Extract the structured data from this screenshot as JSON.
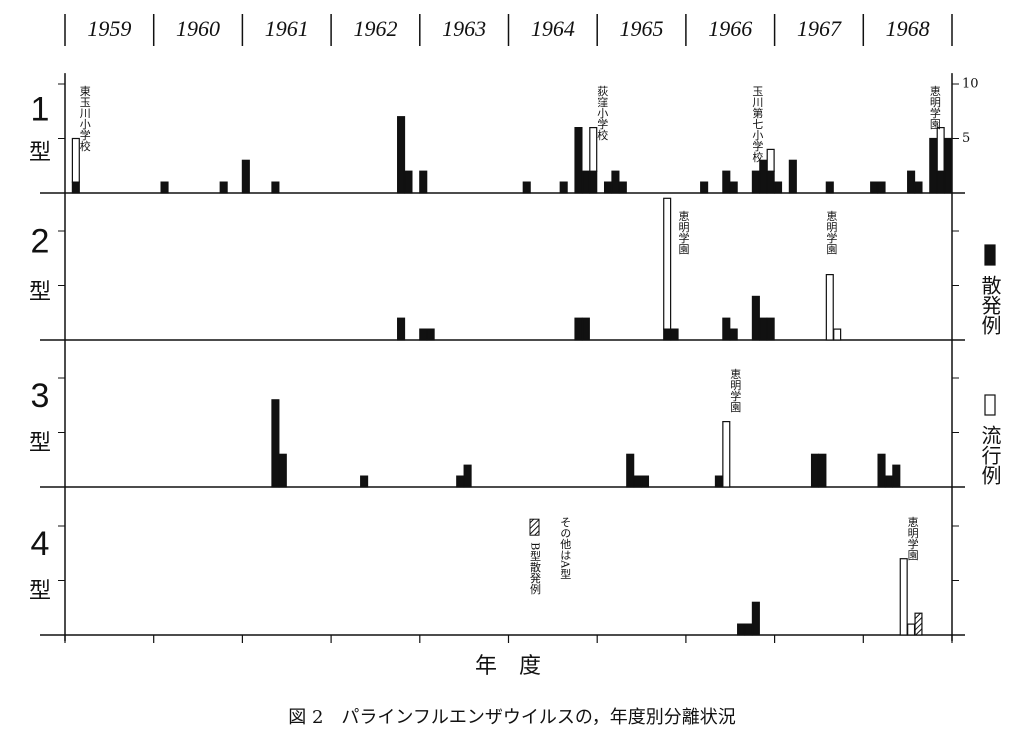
{
  "years": [
    "1959",
    "1960",
    "1961",
    "1962",
    "1963",
    "1964",
    "1965",
    "1966",
    "1967",
    "1968"
  ],
  "xlim": [
    0,
    120
  ],
  "xticks": [
    0,
    12,
    24,
    36,
    48,
    60,
    72,
    84,
    96,
    108,
    120
  ],
  "x_label": "年　度",
  "caption": "図 2　パラインフルエンザウイルスの，年度別分離状況",
  "legend": [
    {
      "name": "散発例",
      "color": "#111111"
    },
    {
      "name": "流行例",
      "color": "#ffffff"
    }
  ],
  "chart_data": [
    {
      "type": "bar",
      "label": "1",
      "label_suffix": "型",
      "ylim": [
        0,
        11
      ],
      "yticks": [
        5,
        10
      ],
      "ytick_labels": true,
      "series": [
        {
          "color": "#111111",
          "x": [
            1,
            13,
            21,
            24,
            28,
            45,
            46,
            48,
            62,
            67,
            69,
            70,
            71,
            73,
            74,
            75,
            86,
            89,
            90,
            93,
            94,
            95,
            96,
            98,
            103,
            109,
            110,
            114,
            115,
            117,
            118,
            119
          ],
          "values": [
            1,
            1,
            1,
            3,
            1,
            7,
            2,
            2,
            1,
            1,
            6,
            2,
            2,
            1,
            2,
            1,
            1,
            2,
            1,
            2,
            3,
            2,
            1,
            3,
            1,
            1,
            1,
            2,
            1,
            5,
            2,
            5
          ]
        },
        {
          "color": "#ffffff",
          "x": [
            1,
            71,
            95,
            118
          ],
          "values": [
            4,
            4,
            2,
            4
          ]
        }
      ],
      "annotations": [
        {
          "text": "東玉川小学校",
          "x": 2
        },
        {
          "text": "荻窪小学校",
          "x": 72
        },
        {
          "text": "玉川第七小学校",
          "x": 93
        },
        {
          "text": "恵明学園",
          "x": 117
        }
      ]
    },
    {
      "type": "bar",
      "label": "2",
      "label_suffix": "型",
      "ylim": [
        0,
        13
      ],
      "yticks": [
        5,
        10
      ],
      "ytick_labels": false,
      "series": [
        {
          "color": "#111111",
          "x": [
            45,
            48,
            49,
            69,
            70,
            81,
            82,
            89,
            90,
            93,
            94,
            95
          ],
          "values": [
            2,
            1,
            1,
            2,
            2,
            1,
            1,
            2,
            1,
            4,
            2,
            2
          ]
        },
        {
          "color": "#ffffff",
          "x": [
            81,
            103,
            104
          ],
          "values": [
            12,
            6,
            1
          ]
        }
      ],
      "annotations": [
        {
          "text": "恵明学園",
          "x": 83
        },
        {
          "text": "恵明学園",
          "x": 103
        }
      ]
    },
    {
      "type": "bar",
      "label": "3",
      "label_suffix": "型",
      "ylim": [
        0,
        12
      ],
      "yticks": [
        5,
        10
      ],
      "ytick_labels": false,
      "series": [
        {
          "color": "#111111",
          "x": [
            28,
            29,
            40,
            53,
            54,
            76,
            77,
            78,
            88,
            101,
            102,
            110,
            111,
            112
          ],
          "values": [
            8,
            3,
            1,
            1,
            2,
            3,
            1,
            1,
            1,
            3,
            3,
            3,
            1,
            2
          ]
        },
        {
          "color": "#ffffff",
          "x": [
            89
          ],
          "values": [
            6
          ]
        }
      ],
      "annotations": [
        {
          "text": "恵明学園",
          "x": 90
        }
      ]
    },
    {
      "type": "bar",
      "label": "4",
      "label_suffix": "型",
      "ylim": [
        0,
        12
      ],
      "yticks": [
        5,
        10
      ],
      "ytick_labels": false,
      "series": [
        {
          "color": "#111111",
          "x": [
            91,
            92,
            93
          ],
          "values": [
            1,
            1,
            3
          ]
        },
        {
          "color": "#ffffff",
          "x": [
            113,
            114
          ],
          "values": [
            7,
            1
          ]
        },
        {
          "name": "B型散発例",
          "color": "#ffffff",
          "pattern": "hatch",
          "x": [
            115
          ],
          "values": [
            2
          ]
        }
      ],
      "annotations": [
        {
          "text": "その他はA型",
          "x": 67
        },
        {
          "text": "恵明学園",
          "x": 114
        }
      ]
    }
  ]
}
